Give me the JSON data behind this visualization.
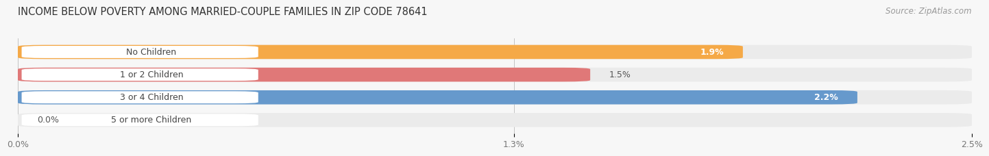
{
  "title": "INCOME BELOW POVERTY AMONG MARRIED-COUPLE FAMILIES IN ZIP CODE 78641",
  "source": "Source: ZipAtlas.com",
  "categories": [
    "No Children",
    "1 or 2 Children",
    "3 or 4 Children",
    "5 or more Children"
  ],
  "values": [
    1.9,
    1.5,
    2.2,
    0.0
  ],
  "bar_colors": [
    "#f5a947",
    "#e07878",
    "#6699cc",
    "#c8aed4"
  ],
  "bar_bg_colors": [
    "#ebebeb",
    "#ebebeb",
    "#ebebeb",
    "#ebebeb"
  ],
  "xlim": [
    0,
    2.5
  ],
  "xticks": [
    0.0,
    1.3,
    2.5
  ],
  "xtick_labels": [
    "0.0%",
    "1.3%",
    "2.5%"
  ],
  "label_color_inside": "#ffffff",
  "label_color_outside": "#555555",
  "background_color": "#f7f7f7",
  "bar_height": 0.62,
  "title_fontsize": 10.5,
  "source_fontsize": 8.5,
  "tick_fontsize": 9,
  "label_fontsize": 9,
  "category_fontsize": 9,
  "value_threshold_inside": 1.7
}
